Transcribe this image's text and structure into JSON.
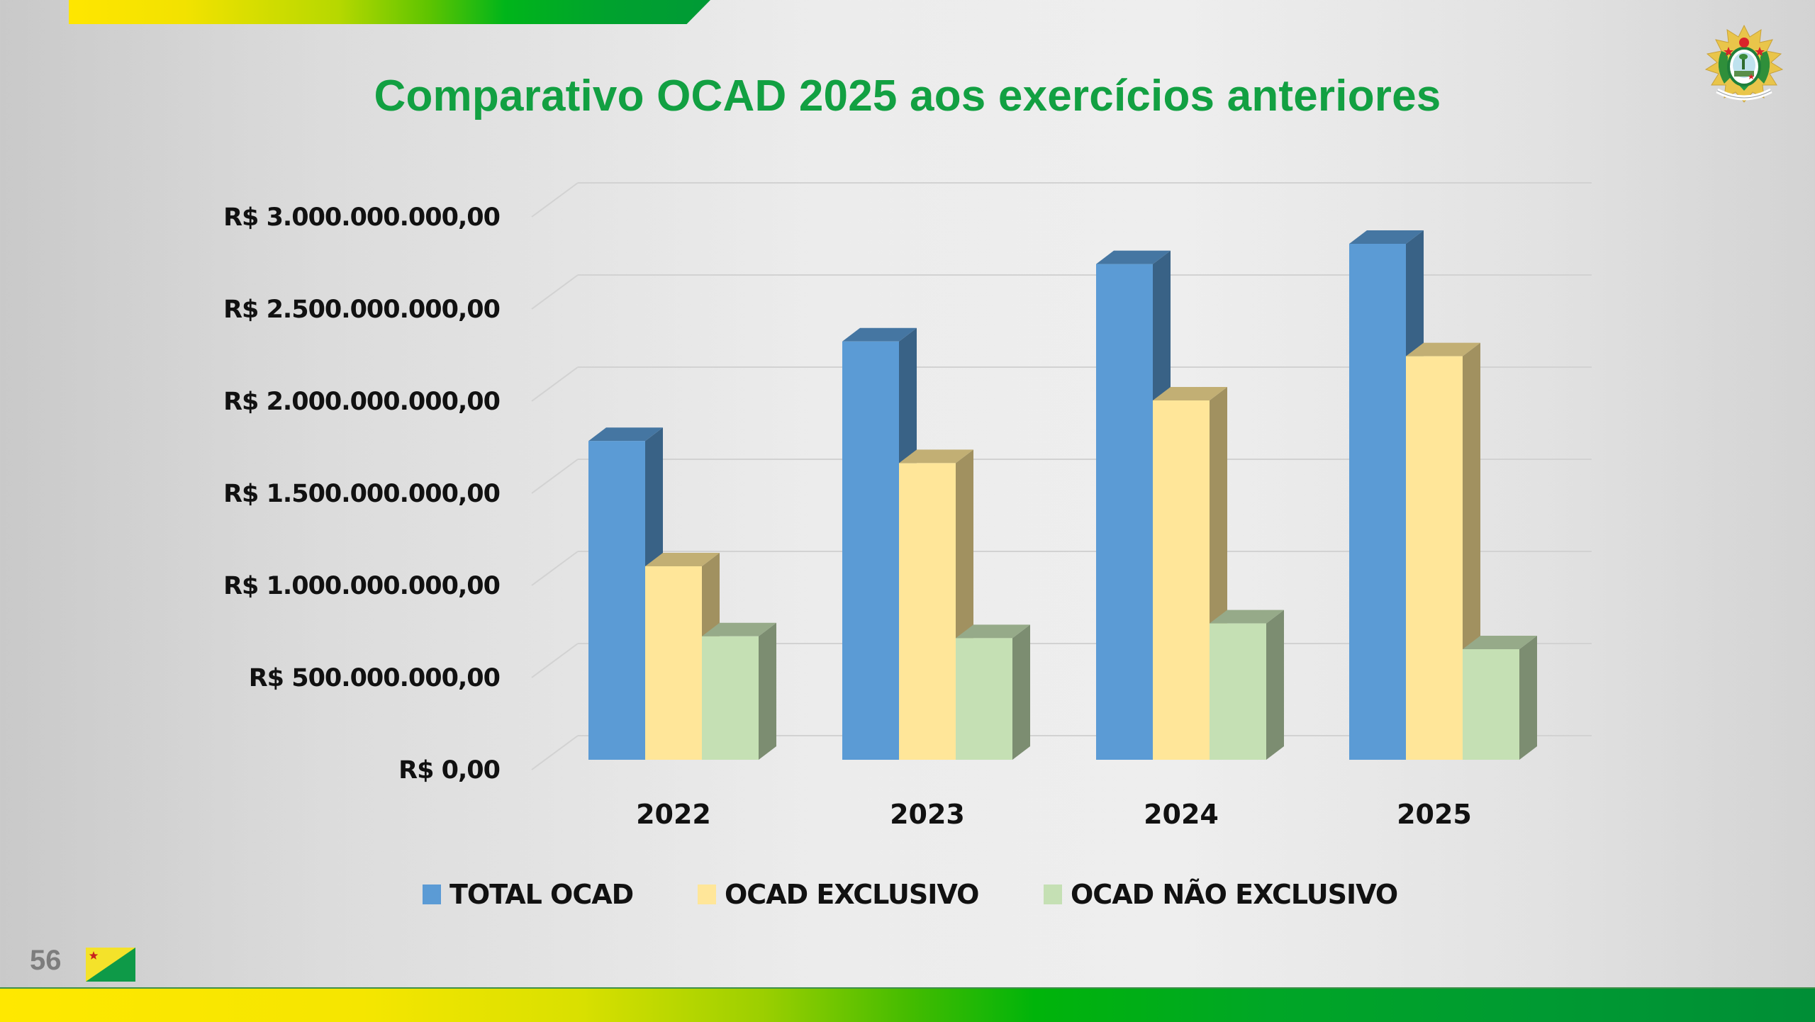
{
  "slide": {
    "title": "Comparativo OCAD 2025 aos exercícios anteriores",
    "page_number": "56",
    "logo_icon": "acre-coat-of-arms-icon",
    "flag_icon": "acre-flag-icon",
    "colors": {
      "title": "#12a042",
      "bar_yellow": "#ffe600",
      "bar_green": "#009a36"
    }
  },
  "chart_data": {
    "type": "bar",
    "style": "3d-clustered-column",
    "title": "",
    "xlabel": "",
    "ylabel": "",
    "categories": [
      "2022",
      "2023",
      "2024",
      "2025"
    ],
    "series": [
      {
        "name": "TOTAL OCAD",
        "color": "#5b9bd5",
        "values": [
          1730000000,
          2270000000,
          2690000000,
          2800000000
        ]
      },
      {
        "name": "OCAD EXCLUSIVO",
        "color": "#ffe699",
        "values": [
          1050000000,
          1610000000,
          1950000000,
          2190000000
        ]
      },
      {
        "name": "OCAD NÃO EXCLUSIVO",
        "color": "#c5e0b4",
        "values": [
          670000000,
          660000000,
          740000000,
          600000000
        ]
      }
    ],
    "ylim": [
      0,
      3000000000
    ],
    "yticks": [
      0,
      500000000,
      1000000000,
      1500000000,
      2000000000,
      2500000000,
      3000000000
    ],
    "ytick_labels": [
      "R$ 0,00",
      "R$ 500.000.000,00",
      "R$ 1.000.000.000,00",
      "R$ 1.500.000.000,00",
      "R$ 2.000.000.000,00",
      "R$ 2.500.000.000,00",
      "R$ 3.000.000.000,00"
    ],
    "grid": true,
    "legend": "bottom"
  }
}
